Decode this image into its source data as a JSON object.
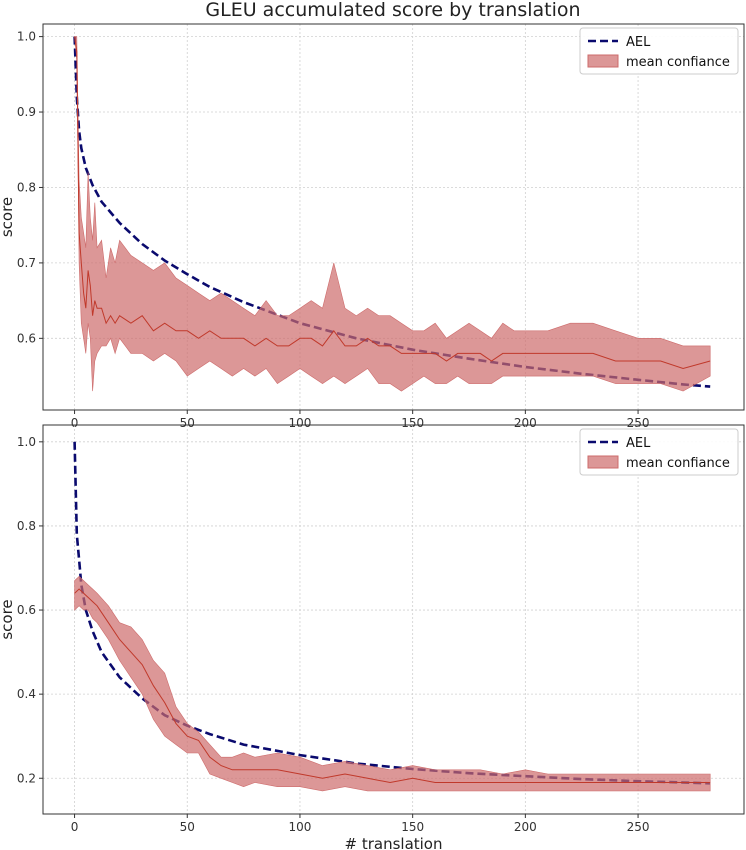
{
  "figure": {
    "title": "GLEU accumulated score by translation"
  },
  "colors": {
    "ael": "#0a0a6e",
    "band_fill": "#cd6b6b",
    "mean_line": "#c0392b"
  },
  "chart_data": [
    {
      "type": "line",
      "title": "GLEU accumulated score by translation",
      "xlabel": "",
      "ylabel": "score",
      "xlim": [
        -14,
        297
      ],
      "ylim": [
        0.505,
        1.0167
      ],
      "x_ticks": [
        0,
        50,
        100,
        150,
        200,
        250
      ],
      "y_ticks": [
        0.6,
        0.7,
        0.8,
        0.9,
        1.0
      ],
      "grid": true,
      "legend_position": "top-right",
      "series": [
        {
          "name": "AEL",
          "kind": "dashed-line",
          "x": [
            0,
            1,
            2,
            3,
            5,
            8,
            12,
            20,
            30,
            40,
            50,
            60,
            75,
            100,
            125,
            150,
            175,
            200,
            225,
            250,
            270,
            282
          ],
          "y": [
            1.0,
            0.92,
            0.875,
            0.852,
            0.826,
            0.803,
            0.781,
            0.753,
            0.725,
            0.703,
            0.685,
            0.668,
            0.648,
            0.62,
            0.6,
            0.585,
            0.573,
            0.562,
            0.553,
            0.545,
            0.539,
            0.536
          ]
        },
        {
          "name": "mean confiance",
          "kind": "band",
          "x": [
            0,
            1,
            2,
            3,
            4,
            5,
            6,
            7,
            8,
            9,
            10,
            12,
            14,
            16,
            18,
            20,
            25,
            30,
            35,
            40,
            45,
            50,
            55,
            60,
            65,
            70,
            75,
            80,
            85,
            90,
            95,
            100,
            105,
            110,
            115,
            120,
            125,
            130,
            135,
            140,
            145,
            150,
            155,
            160,
            165,
            170,
            175,
            180,
            185,
            190,
            195,
            200,
            210,
            220,
            230,
            240,
            250,
            260,
            270,
            282
          ],
          "upper": [
            1.0,
            1.0,
            0.81,
            0.76,
            0.74,
            0.72,
            0.82,
            0.76,
            0.73,
            0.78,
            0.72,
            0.73,
            0.68,
            0.72,
            0.7,
            0.73,
            0.71,
            0.7,
            0.69,
            0.7,
            0.68,
            0.67,
            0.66,
            0.65,
            0.66,
            0.65,
            0.64,
            0.63,
            0.65,
            0.63,
            0.63,
            0.64,
            0.65,
            0.64,
            0.7,
            0.64,
            0.63,
            0.64,
            0.63,
            0.63,
            0.62,
            0.61,
            0.61,
            0.62,
            0.6,
            0.61,
            0.62,
            0.61,
            0.6,
            0.62,
            0.61,
            0.61,
            0.61,
            0.62,
            0.62,
            0.61,
            0.6,
            0.6,
            0.59,
            0.59
          ],
          "mean": [
            1.0,
            0.98,
            0.74,
            0.7,
            0.66,
            0.64,
            0.69,
            0.67,
            0.63,
            0.65,
            0.64,
            0.64,
            0.62,
            0.63,
            0.62,
            0.63,
            0.62,
            0.63,
            0.61,
            0.62,
            0.61,
            0.61,
            0.6,
            0.61,
            0.6,
            0.6,
            0.6,
            0.59,
            0.6,
            0.59,
            0.59,
            0.6,
            0.6,
            0.59,
            0.61,
            0.59,
            0.59,
            0.6,
            0.59,
            0.59,
            0.58,
            0.58,
            0.58,
            0.58,
            0.57,
            0.58,
            0.58,
            0.58,
            0.57,
            0.58,
            0.58,
            0.58,
            0.58,
            0.58,
            0.58,
            0.57,
            0.57,
            0.57,
            0.56,
            0.57
          ],
          "lower": [
            1.0,
            0.97,
            0.7,
            0.62,
            0.6,
            0.58,
            0.62,
            0.6,
            0.53,
            0.57,
            0.58,
            0.59,
            0.59,
            0.6,
            0.58,
            0.6,
            0.58,
            0.58,
            0.57,
            0.58,
            0.57,
            0.55,
            0.56,
            0.57,
            0.56,
            0.55,
            0.56,
            0.55,
            0.56,
            0.54,
            0.55,
            0.56,
            0.55,
            0.54,
            0.55,
            0.54,
            0.55,
            0.56,
            0.54,
            0.54,
            0.53,
            0.54,
            0.55,
            0.54,
            0.54,
            0.55,
            0.54,
            0.54,
            0.54,
            0.55,
            0.55,
            0.55,
            0.55,
            0.55,
            0.55,
            0.54,
            0.54,
            0.54,
            0.53,
            0.55
          ]
        }
      ]
    },
    {
      "type": "line",
      "title": "",
      "xlabel": "# translation",
      "ylabel": "score",
      "xlim": [
        -14,
        297
      ],
      "ylim": [
        0.115,
        1.04
      ],
      "x_ticks": [
        0,
        50,
        100,
        150,
        200,
        250
      ],
      "y_ticks": [
        0.2,
        0.4,
        0.6,
        0.8,
        1.0
      ],
      "grid": true,
      "legend_position": "top-right",
      "series": [
        {
          "name": "AEL",
          "kind": "dashed-line",
          "x": [
            0,
            1,
            2,
            3,
            5,
            8,
            12,
            20,
            30,
            40,
            50,
            60,
            75,
            100,
            125,
            150,
            175,
            200,
            225,
            250,
            270,
            282
          ],
          "y": [
            1.0,
            0.78,
            0.72,
            0.66,
            0.6,
            0.55,
            0.5,
            0.44,
            0.39,
            0.35,
            0.325,
            0.305,
            0.28,
            0.255,
            0.235,
            0.222,
            0.212,
            0.205,
            0.198,
            0.193,
            0.19,
            0.188
          ]
        },
        {
          "name": "mean confiance",
          "kind": "band",
          "x": [
            0,
            2,
            4,
            6,
            8,
            10,
            15,
            20,
            25,
            30,
            35,
            40,
            45,
            50,
            55,
            60,
            65,
            70,
            75,
            80,
            90,
            100,
            110,
            120,
            130,
            140,
            150,
            160,
            170,
            180,
            190,
            200,
            210,
            220,
            230,
            240,
            250,
            260,
            270,
            282
          ],
          "upper": [
            0.67,
            0.68,
            0.67,
            0.66,
            0.65,
            0.64,
            0.61,
            0.57,
            0.56,
            0.53,
            0.48,
            0.45,
            0.37,
            0.33,
            0.31,
            0.28,
            0.25,
            0.25,
            0.26,
            0.25,
            0.26,
            0.25,
            0.23,
            0.24,
            0.23,
            0.22,
            0.23,
            0.22,
            0.22,
            0.22,
            0.21,
            0.22,
            0.21,
            0.21,
            0.21,
            0.21,
            0.21,
            0.21,
            0.21,
            0.21
          ],
          "mean": [
            0.64,
            0.65,
            0.64,
            0.63,
            0.62,
            0.61,
            0.57,
            0.53,
            0.5,
            0.47,
            0.42,
            0.38,
            0.33,
            0.3,
            0.29,
            0.25,
            0.23,
            0.22,
            0.22,
            0.22,
            0.22,
            0.21,
            0.2,
            0.21,
            0.2,
            0.19,
            0.2,
            0.19,
            0.19,
            0.19,
            0.19,
            0.19,
            0.19,
            0.19,
            0.19,
            0.19,
            0.19,
            0.19,
            0.19,
            0.19
          ],
          "lower": [
            0.6,
            0.61,
            0.6,
            0.6,
            0.58,
            0.57,
            0.53,
            0.48,
            0.44,
            0.4,
            0.34,
            0.3,
            0.28,
            0.26,
            0.26,
            0.21,
            0.2,
            0.19,
            0.18,
            0.19,
            0.18,
            0.18,
            0.17,
            0.18,
            0.17,
            0.17,
            0.17,
            0.17,
            0.17,
            0.17,
            0.17,
            0.17,
            0.17,
            0.17,
            0.17,
            0.17,
            0.17,
            0.17,
            0.17,
            0.17
          ]
        }
      ]
    }
  ]
}
